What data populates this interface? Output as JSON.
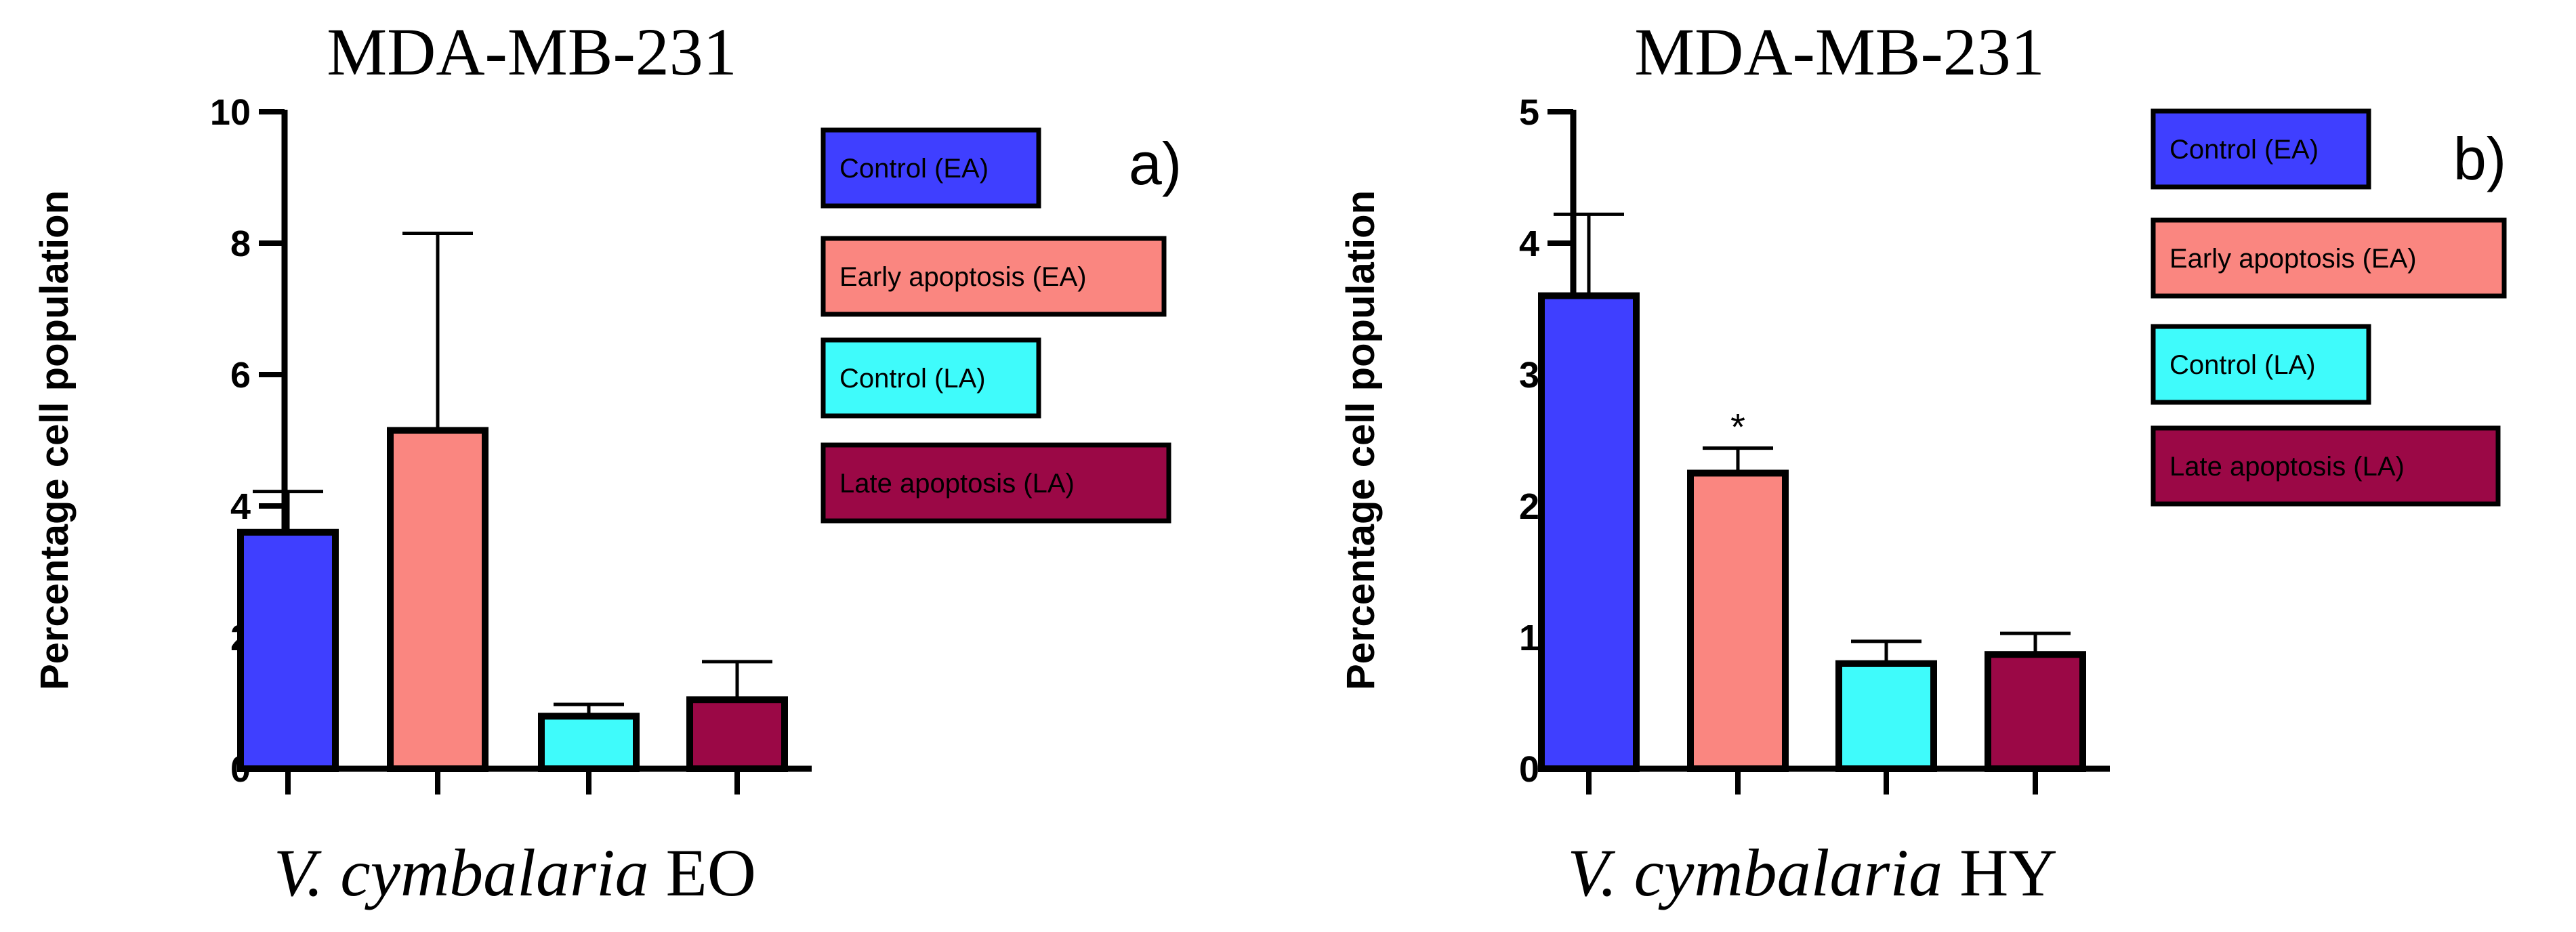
{
  "chart_data": [
    {
      "type": "bar",
      "panel": "a)",
      "title": "MDA-MB-231",
      "ylabel": "Percentage cell population",
      "xlabel_italic": "V. cymbalaria",
      "xlabel_rest": " EO",
      "ylim": [
        0,
        10
      ],
      "yticks": [
        0,
        2,
        4,
        6,
        8,
        10
      ],
      "categories": [
        "Control (EA)",
        "Early apoptosis (EA)",
        "Control (LA)",
        "Late apoptosis (LA)"
      ],
      "values": [
        3.6,
        5.15,
        0.8,
        1.05
      ],
      "errors": [
        0.62,
        3.0,
        0.18,
        0.58
      ],
      "colors": [
        "#3f3fff",
        "#fa8680",
        "#3ffbfb",
        "#9b0846"
      ],
      "significance": [
        "",
        "",
        "",
        ""
      ]
    },
    {
      "type": "bar",
      "panel": "b)",
      "title": "MDA-MB-231",
      "ylabel": "Percentage cell population",
      "xlabel_italic": "V. cymbalaria",
      "xlabel_rest": " HY",
      "ylim": [
        0,
        5
      ],
      "yticks": [
        0,
        1,
        2,
        3,
        4,
        5
      ],
      "categories": [
        "Control (EA)",
        "Early apoptosis (EA)",
        "Control (LA)",
        "Late apoptosis (LA)"
      ],
      "values": [
        3.6,
        2.25,
        0.8,
        0.87
      ],
      "errors": [
        0.62,
        0.19,
        0.17,
        0.16
      ],
      "colors": [
        "#3f3fff",
        "#fa8680",
        "#3ffbfb",
        "#9b0846"
      ],
      "significance": [
        "",
        "*",
        "",
        ""
      ]
    }
  ]
}
